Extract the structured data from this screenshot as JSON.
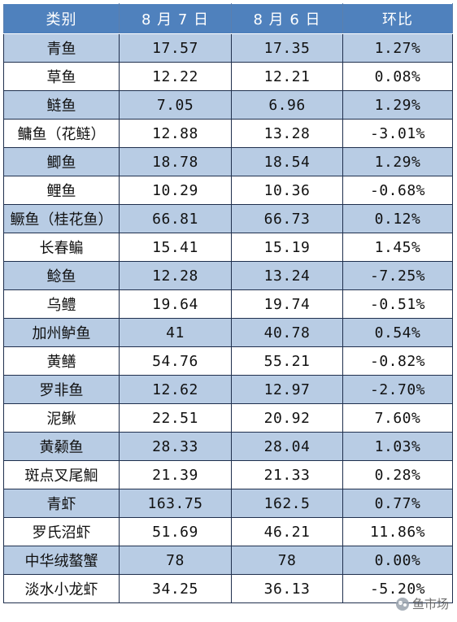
{
  "table": {
    "headers": [
      "类别",
      "8 月 7 日",
      "8 月 6 日",
      "环比"
    ],
    "rows": [
      {
        "name": "青鱼",
        "aug7": "17.57",
        "aug6": "17.35",
        "change": "1.27%"
      },
      {
        "name": "草鱼",
        "aug7": "12.22",
        "aug6": "12.21",
        "change": "0.08%"
      },
      {
        "name": "鲢鱼",
        "aug7": "7.05",
        "aug6": "6.96",
        "change": "1.29%"
      },
      {
        "name": "鳙鱼（花鲢）",
        "aug7": "12.88",
        "aug6": "13.28",
        "change": "-3.01%"
      },
      {
        "name": "鲫鱼",
        "aug7": "18.78",
        "aug6": "18.54",
        "change": "1.29%"
      },
      {
        "name": "鲤鱼",
        "aug7": "10.29",
        "aug6": "10.36",
        "change": "-0.68%"
      },
      {
        "name": "鳜鱼（桂花鱼）",
        "aug7": "66.81",
        "aug6": "66.73",
        "change": "0.12%"
      },
      {
        "name": "长春鳊",
        "aug7": "15.41",
        "aug6": "15.19",
        "change": "1.45%"
      },
      {
        "name": "鲶鱼",
        "aug7": "12.28",
        "aug6": "13.24",
        "change": "-7.25%"
      },
      {
        "name": "乌鳢",
        "aug7": "19.64",
        "aug6": "19.74",
        "change": "-0.51%"
      },
      {
        "name": "加州鲈鱼",
        "aug7": "41",
        "aug6": "40.78",
        "change": "0.54%"
      },
      {
        "name": "黄鳝",
        "aug7": "54.76",
        "aug6": "55.21",
        "change": "-0.82%"
      },
      {
        "name": "罗非鱼",
        "aug7": "12.62",
        "aug6": "12.97",
        "change": "-2.70%"
      },
      {
        "name": "泥鳅",
        "aug7": "22.51",
        "aug6": "20.92",
        "change": "7.60%"
      },
      {
        "name": "黄颡鱼",
        "aug7": "28.33",
        "aug6": "28.04",
        "change": "1.03%"
      },
      {
        "name": "斑点叉尾鮰",
        "aug7": "21.39",
        "aug6": "21.33",
        "change": "0.28%"
      },
      {
        "name": "青虾",
        "aug7": "163.75",
        "aug6": "162.5",
        "change": "0.77%"
      },
      {
        "name": "罗氏沼虾",
        "aug7": "51.69",
        "aug6": "46.21",
        "change": "11.86%"
      },
      {
        "name": "中华绒螯蟹",
        "aug7": "78",
        "aug6": "78",
        "change": "0.00%"
      },
      {
        "name": "淡水小龙虾",
        "aug7": "34.25",
        "aug6": "36.13",
        "change": "-5.20%"
      }
    ]
  },
  "watermark": {
    "text": "鱼市场",
    "icon": "wechat-icon"
  },
  "colors": {
    "header_bg": "#4f81bd",
    "band_bg": "#b8cce4",
    "border": "#1f2f4d"
  }
}
